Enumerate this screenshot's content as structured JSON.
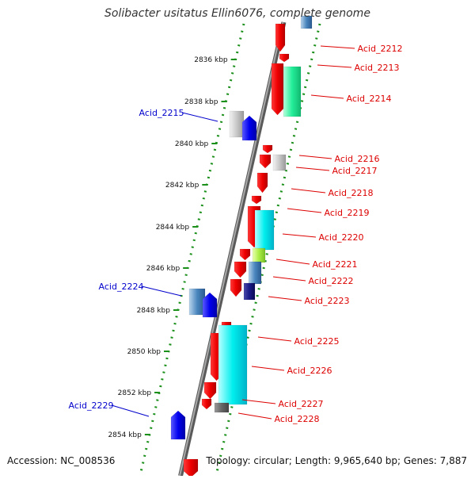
{
  "title": "Solibacter usitatus Ellin6076, complete genome",
  "footer": {
    "accession": "Accession: NC_008536",
    "topology": "Topology: circular; Length: 9,965,640 bp; Genes: 7,887"
  },
  "colors": {
    "backbone": "#7d7d7d",
    "ruler_ticks": "#1a8f1a",
    "forward_label": "#0000cc",
    "reverse_label": "#dd0000"
  },
  "scale": {
    "labels": [
      "2836 kbp",
      "2838 kbp",
      "2840 kbp",
      "2842 kbp",
      "2844 kbp",
      "2846 kbp",
      "2848 kbp",
      "2850 kbp",
      "2852 kbp",
      "2854 kbp"
    ]
  },
  "genes": {
    "forward": [
      "Acid_2215",
      "Acid_2224",
      "Acid_2229"
    ],
    "reverse": [
      "Acid_2212",
      "Acid_2213",
      "Acid_2214",
      "Acid_2216",
      "Acid_2217",
      "Acid_2218",
      "Acid_2219",
      "Acid_2220",
      "Acid_2221",
      "Acid_2222",
      "Acid_2223",
      "Acid_2225",
      "Acid_2226",
      "Acid_2227",
      "Acid_2228"
    ]
  }
}
